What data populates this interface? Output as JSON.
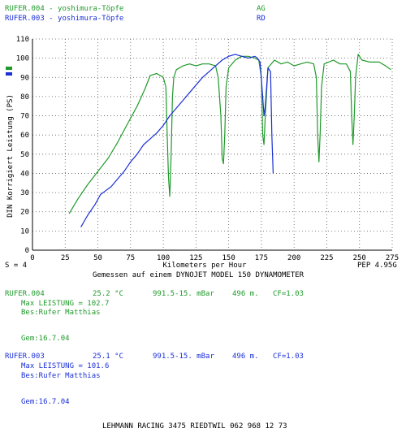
{
  "header": {
    "legend": [
      {
        "name": "RUFER.004 - yoshimura-Töpfe",
        "code": "AG",
        "color": "#1f9a2a"
      },
      {
        "name": "RUFER.003 - yoshimura-Töpfe",
        "code": "RD",
        "color": "#1a2fd6"
      }
    ]
  },
  "chart_data": {
    "type": "line",
    "ylabel": "DIN Korrigiert Leistung (PS)",
    "xlabel": "Kilometers per Hour",
    "xlim": [
      0,
      275
    ],
    "ylim": [
      0,
      110
    ],
    "xticks": [
      "0",
      "25",
      "50",
      "75",
      "100",
      "125",
      "150",
      "175",
      "200",
      "225",
      "250",
      "275"
    ],
    "yticks": [
      "0",
      "10",
      "20",
      "30",
      "40",
      "50",
      "60",
      "70",
      "80",
      "90",
      "100",
      "110"
    ],
    "grid": true,
    "series": [
      {
        "name": "RUFER.004",
        "color": "#1f9a2a",
        "points": [
          [
            28,
            19
          ],
          [
            35,
            27
          ],
          [
            42,
            34
          ],
          [
            50,
            41
          ],
          [
            58,
            48
          ],
          [
            65,
            56
          ],
          [
            72,
            65
          ],
          [
            80,
            75
          ],
          [
            86,
            84
          ],
          [
            90,
            91
          ],
          [
            95,
            92
          ],
          [
            100,
            90
          ],
          [
            102,
            85
          ],
          [
            103,
            60
          ],
          [
            104,
            38
          ],
          [
            105,
            28
          ],
          [
            106,
            50
          ],
          [
            107,
            80
          ],
          [
            108,
            90
          ],
          [
            110,
            94
          ],
          [
            115,
            96
          ],
          [
            120,
            97
          ],
          [
            125,
            96
          ],
          [
            130,
            97
          ],
          [
            135,
            97
          ],
          [
            140,
            96
          ],
          [
            142,
            90
          ],
          [
            144,
            70
          ],
          [
            145,
            48
          ],
          [
            146,
            45
          ],
          [
            147,
            60
          ],
          [
            148,
            85
          ],
          [
            150,
            95
          ],
          [
            155,
            99
          ],
          [
            160,
            101
          ],
          [
            165,
            101
          ],
          [
            170,
            100
          ],
          [
            173,
            99
          ],
          [
            175,
            90
          ],
          [
            176,
            60
          ],
          [
            177,
            55
          ],
          [
            178,
            70
          ],
          [
            180,
            95
          ],
          [
            185,
            99
          ],
          [
            190,
            97
          ],
          [
            195,
            98
          ],
          [
            200,
            96
          ],
          [
            205,
            97
          ],
          [
            210,
            98
          ],
          [
            215,
            97
          ],
          [
            217,
            90
          ],
          [
            218,
            60
          ],
          [
            219,
            46
          ],
          [
            220,
            62
          ],
          [
            221,
            85
          ],
          [
            223,
            97
          ],
          [
            230,
            99
          ],
          [
            235,
            97
          ],
          [
            240,
            97
          ],
          [
            243,
            93
          ],
          [
            244,
            70
          ],
          [
            245,
            55
          ],
          [
            246,
            70
          ],
          [
            247,
            90
          ],
          [
            249,
            102
          ],
          [
            252,
            99
          ],
          [
            258,
            98
          ],
          [
            265,
            98
          ],
          [
            270,
            96
          ],
          [
            274,
            94
          ]
        ]
      },
      {
        "name": "RUFER.003",
        "color": "#1a2fd6",
        "points": [
          [
            37,
            12
          ],
          [
            42,
            18
          ],
          [
            48,
            24
          ],
          [
            52,
            29
          ],
          [
            56,
            31
          ],
          [
            60,
            33
          ],
          [
            65,
            37
          ],
          [
            70,
            41
          ],
          [
            75,
            46
          ],
          [
            80,
            50
          ],
          [
            85,
            55
          ],
          [
            90,
            58
          ],
          [
            95,
            61
          ],
          [
            100,
            65
          ],
          [
            105,
            70
          ],
          [
            110,
            74
          ],
          [
            115,
            78
          ],
          [
            120,
            82
          ],
          [
            125,
            86
          ],
          [
            130,
            90
          ],
          [
            135,
            93
          ],
          [
            140,
            96
          ],
          [
            145,
            99
          ],
          [
            150,
            101
          ],
          [
            155,
            102
          ],
          [
            160,
            101
          ],
          [
            165,
            100
          ],
          [
            170,
            101
          ],
          [
            172,
            100
          ],
          [
            174,
            98
          ],
          [
            176,
            80
          ],
          [
            177,
            70
          ],
          [
            178,
            75
          ],
          [
            180,
            95
          ],
          [
            182,
            93
          ],
          [
            183,
            60
          ],
          [
            184,
            40
          ]
        ]
      }
    ]
  },
  "chart_meta": {
    "s_label": "S = 4",
    "pep_label": "PEP 4.95G",
    "measured": "Gemessen auf einem DYNOJET MODEL 150 DYNAMOMETER"
  },
  "runs": [
    {
      "name": "RUFER.004",
      "temp": "25.2 °C",
      "pressure": "991.5-15. mBar",
      "altitude": "496 m.",
      "cf": "CF=1.03",
      "max": "Max LEISTUNG = 102.7",
      "bes": "Bes:Rufer Matthias",
      "gem": "Gem:16.7.04"
    },
    {
      "name": "RUFER.003",
      "temp": "25.1 °C",
      "pressure": "991.5-15. mBar",
      "altitude": "496 m.",
      "cf": "CF=1.03",
      "max": "Max LEISTUNG = 101.6",
      "bes": "Bes:Rufer Matthias",
      "gem": "Gem:16.7.04"
    }
  ],
  "footer": "LEHMANN RACING 3475 RIEDTWIL 062 968 12 73"
}
